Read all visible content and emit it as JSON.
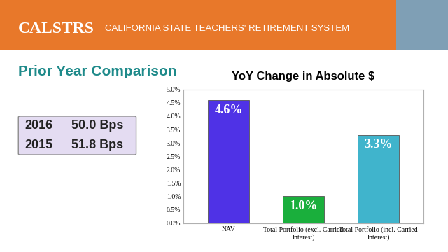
{
  "header": {
    "logo": "CALSTRS",
    "subtitle": "CALIFORNIA STATE TEACHERS' RETIREMENT SYSTEM"
  },
  "heading": "Prior Year Comparison",
  "comparison": [
    {
      "year": "2016",
      "value": "50.0 Bps"
    },
    {
      "year": "2015",
      "value": "51.8 Bps"
    }
  ],
  "chart_data": {
    "type": "bar",
    "title": "YoY Change in Absolute $",
    "categories": [
      "NAV",
      "Total Portfolio (excl. Carried Interest)",
      "Total Portfolio (incl. Carried Interest)"
    ],
    "values": [
      4.6,
      1.0,
      3.3
    ],
    "value_labels": [
      "4.6%",
      "1.0%",
      "3.3%"
    ],
    "data_labels": true,
    "colors": [
      "#4f32e6",
      "#1aaf3c",
      "#40b4cc"
    ],
    "ylim": [
      0,
      5
    ],
    "yticks": [
      {
        "value": 0,
        "label": "0.0%"
      },
      {
        "value": 0.5,
        "label": "0.5%"
      },
      {
        "value": 1.0,
        "label": "1.0%"
      },
      {
        "value": 1.5,
        "label": "1.5%"
      },
      {
        "value": 2.0,
        "label": "2.0%"
      },
      {
        "value": 2.5,
        "label": "2.5%"
      },
      {
        "value": 3.0,
        "label": "3.0%"
      },
      {
        "value": 3.5,
        "label": "3.5%"
      },
      {
        "value": 4.0,
        "label": "4.0%"
      },
      {
        "value": 4.5,
        "label": "4.5%"
      },
      {
        "value": 5.0,
        "label": "5.0%"
      }
    ],
    "grid": false
  }
}
